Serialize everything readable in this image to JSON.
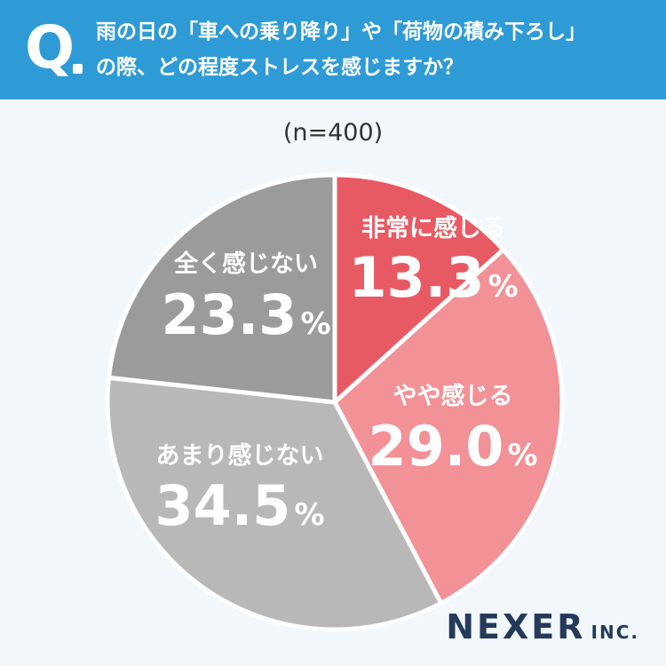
{
  "header": {
    "q_mark": "Q",
    "question": "雨の日の「車への乗り降り」や「荷物の積み下ろし」\nの際、どの程度ストレスを感じますか？"
  },
  "sample_label": "(n=400)",
  "brand": {
    "name": "NEXER",
    "suffix": "INC."
  },
  "colors": {
    "header_bg": "#2f9bd6",
    "page_bg": "#f1f7fb",
    "strong": "#e85a63",
    "somewhat": "#f29196",
    "not_much": "#b8b8b8",
    "not_at_all": "#9b9b9b"
  },
  "chart_data": {
    "type": "pie",
    "title": "",
    "unit": "%",
    "slices": [
      {
        "label": "非常に感じる",
        "value": 13.3,
        "color": "#e85a63"
      },
      {
        "label": "やや感じる",
        "value": 29.0,
        "color": "#f29196"
      },
      {
        "label": "あまり感じない",
        "value": 34.5,
        "color": "#b8b8b8"
      },
      {
        "label": "全く感じない",
        "value": 23.3,
        "color": "#9b9b9b"
      }
    ]
  }
}
